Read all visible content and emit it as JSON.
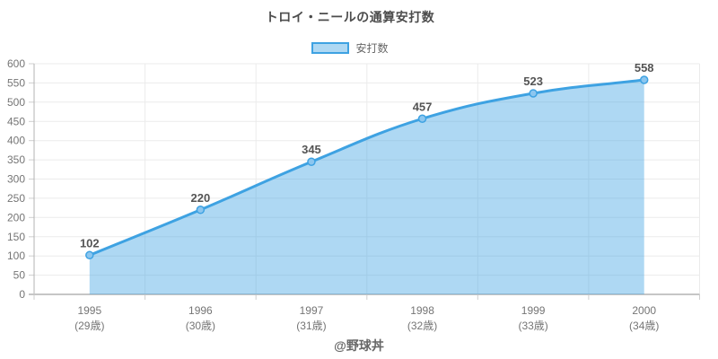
{
  "title": "トロイ・ニールの通算安打数",
  "legend": {
    "label": "安打数"
  },
  "footer": "@野球丼",
  "colors": {
    "line": "#3ea2e2",
    "fill": "rgba(62,162,226,0.42)",
    "point_fill": "#8cc6ef",
    "grid": "#ebebeb",
    "axis": "#c6c6c6",
    "tick": "#cfcfcf",
    "tick_text": "#757575",
    "data_label": "#545454"
  },
  "chart_data": {
    "type": "area",
    "title": "トロイ・ニールの通算安打数",
    "categories": [
      "1995",
      "1996",
      "1997",
      "1998",
      "1999",
      "2000"
    ],
    "category_sublabels": [
      "(29歳)",
      "(30歳)",
      "(31歳)",
      "(32歳)",
      "(33歳)",
      "(34歳)"
    ],
    "series": [
      {
        "name": "安打数",
        "values": [
          102,
          220,
          345,
          457,
          523,
          558
        ]
      }
    ],
    "point_labels": [
      102,
      220,
      345,
      457,
      523,
      558
    ],
    "ylim": [
      0,
      600
    ],
    "ytick_step": 50,
    "yticks": [
      0,
      50,
      100,
      150,
      200,
      250,
      300,
      350,
      400,
      450,
      500,
      550,
      600
    ],
    "grid": true,
    "smooth": true,
    "legend_position": "top",
    "xlabel": "",
    "ylabel": ""
  }
}
